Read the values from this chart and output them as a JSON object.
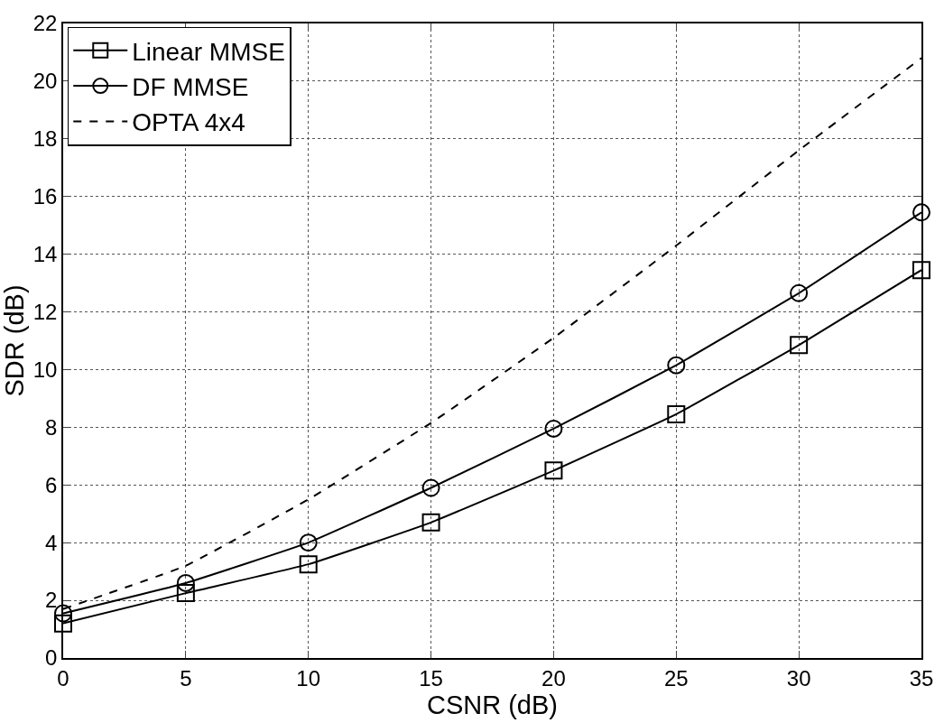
{
  "chart_data": {
    "type": "line",
    "xlabel": "CSNR (dB)",
    "ylabel": "SDR (dB)",
    "x": [
      0,
      5,
      10,
      15,
      20,
      25,
      30,
      35
    ],
    "series": [
      {
        "name": "Linear MMSE",
        "color": "#000000",
        "marker": "square",
        "line_style": "solid",
        "values": [
          1.2,
          2.25,
          3.25,
          4.7,
          6.5,
          8.45,
          10.85,
          13.45
        ]
      },
      {
        "name": "DF MMSE",
        "color": "#000000",
        "marker": "circle",
        "line_style": "solid",
        "values": [
          1.55,
          2.6,
          4.0,
          5.9,
          7.95,
          10.15,
          12.65,
          15.45
        ]
      },
      {
        "name": "OPTA 4x4",
        "color": "#000000",
        "marker": "none",
        "line_style": "dashed",
        "values": [
          1.7,
          3.2,
          5.5,
          8.15,
          11.1,
          14.3,
          17.6,
          20.8
        ]
      }
    ],
    "xlim": [
      0,
      35
    ],
    "xticks": [
      0,
      5,
      10,
      15,
      20,
      25,
      30,
      35
    ],
    "ylim": [
      0,
      22
    ],
    "yticks": [
      0,
      2,
      4,
      6,
      8,
      10,
      12,
      14,
      16,
      18,
      20,
      22
    ],
    "grid": true,
    "legend": "top left"
  }
}
